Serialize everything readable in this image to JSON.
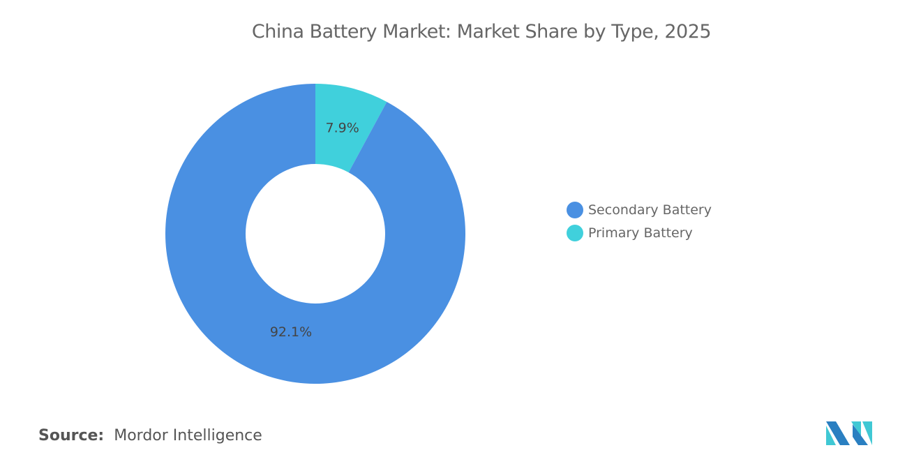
{
  "chart_data": {
    "type": "pie",
    "variant": "donut",
    "title": "China Battery Market: Market Share by Type, 2025",
    "categories": [
      "Secondary Battery",
      "Primary Battery"
    ],
    "values": [
      92.1,
      7.9
    ],
    "data_labels": [
      "92.1%",
      "7.9%"
    ],
    "colors": [
      "#4a90e2",
      "#40d0dc"
    ],
    "legend_position": "right"
  },
  "source": {
    "label": "Source:",
    "value": "Mordor Intelligence"
  },
  "logo": {
    "colors": [
      "#2a7fc1",
      "#40c8d4"
    ]
  }
}
